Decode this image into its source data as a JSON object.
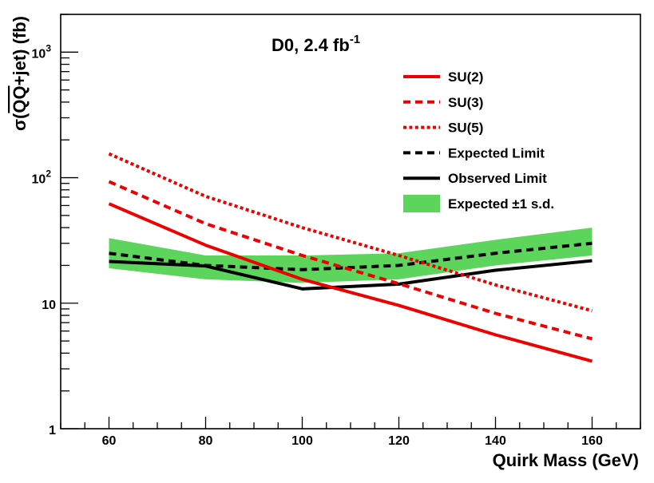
{
  "chart_data": {
    "type": "line",
    "xlabel": "Quirk Mass (GeV)",
    "ylabel": {
      "prefix": "σ(",
      "overlined": "QQ",
      "suffix": "+jet) (fb)"
    },
    "experiment_label": {
      "text": "D0, 2.4 fb",
      "superscript": "-1"
    },
    "xlim": [
      50,
      170
    ],
    "ylim": [
      1,
      2000
    ],
    "y_scale": "log",
    "x_ticks": [
      {
        "value": 60,
        "label": "60"
      },
      {
        "value": 80,
        "label": "80"
      },
      {
        "value": 100,
        "label": "100"
      },
      {
        "value": 120,
        "label": "120"
      },
      {
        "value": 140,
        "label": "140"
      },
      {
        "value": 160,
        "label": "160"
      }
    ],
    "y_ticks": [
      {
        "value": 1,
        "label": "1"
      },
      {
        "value": 10,
        "label": "10"
      },
      {
        "value": 100,
        "label": "10",
        "exponent": "2"
      },
      {
        "value": 1000,
        "label": "10",
        "exponent": "3"
      }
    ],
    "grid": false,
    "legend_position": "top-right",
    "x": [
      60,
      80,
      100,
      120,
      140,
      160
    ],
    "series": [
      {
        "name": "SU(2)",
        "style": "solid",
        "color": "#ee0000",
        "values": [
          62,
          29,
          15.5,
          9.6,
          5.6,
          3.45
        ]
      },
      {
        "name": "SU(3)",
        "style": "dashed",
        "color": "#ee0000",
        "values": [
          93,
          43,
          24,
          14.3,
          8.3,
          5.2
        ]
      },
      {
        "name": "SU(5)",
        "style": "dotted",
        "color": "#ee0000",
        "values": [
          155,
          71,
          40,
          24,
          14,
          8.7
        ]
      },
      {
        "name": "Expected Limit",
        "style": "dashed",
        "color": "#000000",
        "values": [
          25,
          20,
          18.5,
          20,
          25,
          30
        ]
      },
      {
        "name": "Observed Limit",
        "style": "solid",
        "color": "#000000",
        "values": [
          21.5,
          19.8,
          13,
          14.2,
          18.3,
          21.8
        ]
      }
    ],
    "band": {
      "name": "Expected ±1 s.d.",
      "color": "#5dd55d",
      "lower": [
        19,
        15.5,
        14.5,
        15.5,
        20,
        24
      ],
      "upper": [
        33,
        24,
        24,
        25,
        32,
        40
      ]
    }
  }
}
